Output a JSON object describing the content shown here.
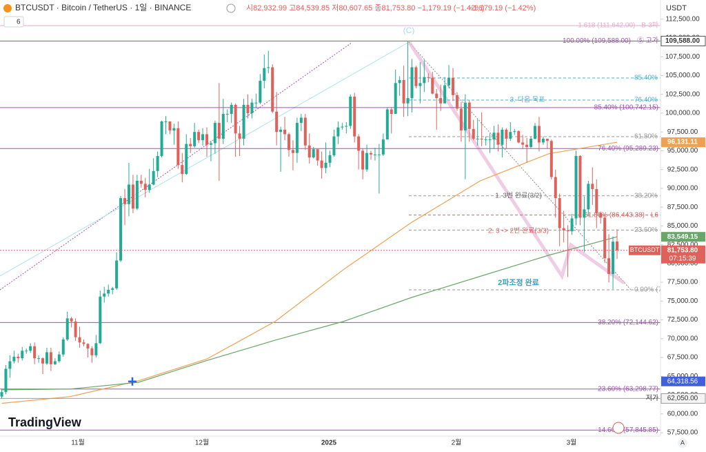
{
  "header": {
    "symbol": "BTCUSDT · Bitcoin / TetherUS · 1일 · BINANCE",
    "ohlc_text": "시82,932.99 고84,539.85 저80,607.65 종81,753.80 −1,179.19 (−1.42%)",
    "change_text": "−1,179.19 (−1.42%)",
    "indicator_count": "6",
    "currency": "USDT",
    "logo": "TradingView",
    "axis_mode": "A"
  },
  "chart_data": {
    "type": "candlestick",
    "up_color": "#22ab94",
    "down_color": "#e0605a",
    "ylim": [
      57040,
      115048
    ],
    "yticks": [
      {
        "value": 57500,
        "label": "57,500.00"
      },
      {
        "value": 60000,
        "label": "60,000.00"
      },
      {
        "value": 62500,
        "label": "62,500.00"
      },
      {
        "value": 65000,
        "label": "65,000.00"
      },
      {
        "value": 67500,
        "label": "67,500.00"
      },
      {
        "value": 70000,
        "label": "70,000.00"
      },
      {
        "value": 72500,
        "label": "72,500.00"
      },
      {
        "value": 75000,
        "label": "75,000.00"
      },
      {
        "value": 77500,
        "label": "77,500.00"
      },
      {
        "value": 80000,
        "label": "80,000.00"
      },
      {
        "value": 82500,
        "label": "82,500.00"
      },
      {
        "value": 85000,
        "label": "85,000.00"
      },
      {
        "value": 87500,
        "label": "87,500.00"
      },
      {
        "value": 90000,
        "label": "90,000.00"
      },
      {
        "value": 92500,
        "label": "92,500.00"
      },
      {
        "value": 95000,
        "label": "95,000.00"
      },
      {
        "value": 97500,
        "label": "97,500.00"
      },
      {
        "value": 100000,
        "label": "100,000.00"
      },
      {
        "value": 102500,
        "label": "102,500.00"
      },
      {
        "value": 105000,
        "label": "105,000.00"
      },
      {
        "value": 107500,
        "label": "107,500.00"
      },
      {
        "value": 110000,
        "label": "110,000.00"
      },
      {
        "value": 112500,
        "label": "112,500.00"
      }
    ],
    "time_labels": [
      "11월",
      "12월",
      "2025",
      "2월",
      "3월"
    ],
    "candles": [
      [
        62300,
        63300,
        62000,
        62900
      ],
      [
        62900,
        66500,
        62600,
        66000
      ],
      [
        66000,
        67800,
        64800,
        67000
      ],
      [
        67000,
        68400,
        66700,
        67600
      ],
      [
        67600,
        68000,
        66800,
        67400
      ],
      [
        67400,
        68900,
        67100,
        68400
      ],
      [
        68400,
        68700,
        68000,
        68400
      ],
      [
        68400,
        69400,
        68100,
        69000
      ],
      [
        69000,
        69500,
        66600,
        67400
      ],
      [
        67400,
        67800,
        66800,
        67400
      ],
      [
        67400,
        67500,
        65300,
        66700
      ],
      [
        66700,
        68800,
        66500,
        68200
      ],
      [
        68200,
        68800,
        65700,
        66600
      ],
      [
        66600,
        67400,
        66500,
        67000
      ],
      [
        67000,
        68300,
        66800,
        67900
      ],
      [
        67900,
        70200,
        67600,
        69900
      ],
      [
        69900,
        73600,
        69700,
        72700
      ],
      [
        72700,
        72900,
        71500,
        72300
      ],
      [
        72300,
        72700,
        69700,
        70200
      ],
      [
        70200,
        71600,
        68800,
        69500
      ],
      [
        69500,
        69900,
        69000,
        69300
      ],
      [
        69300,
        69400,
        67500,
        68700
      ],
      [
        68700,
        69000,
        66800,
        67800
      ],
      [
        67800,
        70500,
        67500,
        69400
      ],
      [
        69400,
        76400,
        69300,
        75600
      ],
      [
        75600,
        76900,
        74800,
        76000
      ],
      [
        76000,
        77200,
        75600,
        76500
      ],
      [
        76500,
        76900,
        75900,
        76700
      ],
      [
        76700,
        81500,
        76500,
        80400
      ],
      [
        80400,
        89000,
        80200,
        88700
      ],
      [
        88700,
        89900,
        85100,
        87900
      ],
      [
        87900,
        93400,
        86300,
        90500
      ],
      [
        90500,
        91800,
        86700,
        87300
      ],
      [
        87300,
        91800,
        87100,
        91000
      ],
      [
        91000,
        91800,
        90100,
        90600
      ],
      [
        90600,
        91400,
        88800,
        89800
      ],
      [
        89800,
        92600,
        89400,
        90500
      ],
      [
        90500,
        94000,
        90400,
        92300
      ],
      [
        92300,
        94900,
        91500,
        94300
      ],
      [
        94300,
        99000,
        94100,
        98900
      ],
      [
        98900,
        99600,
        97200,
        98900
      ],
      [
        98900,
        98900,
        97200,
        97700
      ],
      [
        97700,
        98600,
        95800,
        98000
      ],
      [
        98000,
        98900,
        92600,
        93100
      ],
      [
        93100,
        94700,
        90800,
        91900
      ],
      [
        91900,
        97200,
        91800,
        95900
      ],
      [
        95900,
        96700,
        94700,
        95600
      ],
      [
        95600,
        98700,
        95400,
        97500
      ],
      [
        97500,
        97800,
        96000,
        96400
      ],
      [
        96400,
        98000,
        95700,
        97200
      ],
      [
        97200,
        98100,
        94200,
        95800
      ],
      [
        95800,
        96300,
        93600,
        96000
      ],
      [
        96000,
        99000,
        94600,
        98700
      ],
      [
        98700,
        104000,
        91000,
        96600
      ],
      [
        96600,
        101900,
        95900,
        99900
      ],
      [
        99900,
        100500,
        98800,
        99900
      ],
      [
        99900,
        101400,
        98700,
        101100
      ],
      [
        101100,
        101300,
        94200,
        97300
      ],
      [
        97300,
        98300,
        94300,
        96600
      ],
      [
        96600,
        101900,
        95700,
        101100
      ],
      [
        101100,
        102500,
        99300,
        100000
      ],
      [
        100000,
        101900,
        99300,
        101400
      ],
      [
        101400,
        102600,
        100600,
        101400
      ],
      [
        101400,
        105200,
        101200,
        104300
      ],
      [
        104300,
        107800,
        103300,
        106000
      ],
      [
        106000,
        108300,
        105300,
        106100
      ],
      [
        106100,
        106500,
        100000,
        100200
      ],
      [
        100200,
        102800,
        95700,
        97500
      ],
      [
        97500,
        98200,
        92200,
        97800
      ],
      [
        97800,
        99500,
        96400,
        97200
      ],
      [
        97200,
        97400,
        94200,
        95100
      ],
      [
        95100,
        96400,
        92400,
        94700
      ],
      [
        94700,
        99400,
        93400,
        98700
      ],
      [
        98700,
        99900,
        97600,
        99400
      ],
      [
        99400,
        99900,
        95100,
        95700
      ],
      [
        95700,
        97300,
        93300,
        94100
      ],
      [
        94100,
        95500,
        94000,
        95200
      ],
      [
        95200,
        95200,
        93000,
        93700
      ],
      [
        93700,
        94900,
        91300,
        92700
      ],
      [
        92700,
        96100,
        92000,
        93400
      ],
      [
        93400,
        95000,
        92800,
        94400
      ],
      [
        94400,
        97800,
        94200,
        96900
      ],
      [
        96900,
        98900,
        95900,
        98100
      ],
      [
        98100,
        98700,
        97800,
        98200
      ],
      [
        98200,
        98800,
        97300,
        98300
      ],
      [
        98300,
        102500,
        97900,
        102200
      ],
      [
        102200,
        102700,
        96100,
        96900
      ],
      [
        96900,
        97200,
        92500,
        95000
      ],
      [
        95000,
        95300,
        91200,
        92500
      ],
      [
        92500,
        95800,
        92200,
        94700
      ],
      [
        94700,
        95000,
        93800,
        94500
      ],
      [
        94500,
        95400,
        93700,
        94500
      ],
      [
        94500,
        95900,
        89300,
        94500
      ],
      [
        94500,
        97300,
        94300,
        96500
      ],
      [
        96500,
        100700,
        96500,
        100500
      ],
      [
        100500,
        100800,
        97300,
        99900
      ],
      [
        99900,
        105800,
        99900,
        104000
      ],
      [
        104000,
        104900,
        102300,
        104400
      ],
      [
        104400,
        106300,
        99500,
        101300
      ],
      [
        101300,
        109600,
        99600,
        102000
      ],
      [
        102000,
        107200,
        100100,
        106100
      ],
      [
        106100,
        106300,
        103300,
        103600
      ],
      [
        103600,
        106800,
        101300,
        104000
      ],
      [
        104000,
        107100,
        102800,
        104800
      ],
      [
        104800,
        105300,
        104100,
        104700
      ],
      [
        104700,
        105500,
        102500,
        102600
      ],
      [
        102600,
        103200,
        97800,
        102000
      ],
      [
        102000,
        103800,
        100300,
        101300
      ],
      [
        101300,
        104800,
        101300,
        103700
      ],
      [
        103700,
        106400,
        103300,
        104700
      ],
      [
        104700,
        106000,
        101600,
        102400
      ],
      [
        102400,
        102800,
        100300,
        100600
      ],
      [
        100600,
        101500,
        96200,
        97700
      ],
      [
        97700,
        102500,
        91200,
        101400
      ],
      [
        101400,
        101700,
        96200,
        97900
      ],
      [
        97900,
        99100,
        96400,
        96600
      ],
      [
        96600,
        99200,
        95700,
        96600
      ],
      [
        96600,
        100100,
        95600,
        96500
      ],
      [
        96500,
        96900,
        95700,
        96500
      ],
      [
        96500,
        97300,
        94700,
        96500
      ],
      [
        96500,
        98300,
        95300,
        97400
      ],
      [
        97400,
        98500,
        94900,
        95800
      ],
      [
        95800,
        98100,
        94100,
        97800
      ],
      [
        97800,
        98000,
        95300,
        96600
      ],
      [
        96600,
        98800,
        96300,
        97500
      ],
      [
        97500,
        97900,
        97100,
        97600
      ],
      [
        97600,
        97700,
        96000,
        96100
      ],
      [
        96100,
        97100,
        95200,
        95800
      ],
      [
        95800,
        96700,
        93400,
        95500
      ],
      [
        95500,
        96900,
        95300,
        96600
      ],
      [
        96600,
        98700,
        96500,
        98300
      ],
      [
        98300,
        99500,
        94900,
        96100
      ],
      [
        96100,
        96900,
        95800,
        96600
      ],
      [
        96600,
        96600,
        95300,
        96300
      ],
      [
        96300,
        96500,
        91200,
        91500
      ],
      [
        91500,
        92500,
        86100,
        88700
      ],
      [
        88700,
        89300,
        82300,
        84700
      ],
      [
        84700,
        87000,
        82800,
        84400
      ],
      [
        84400,
        85100,
        78200,
        84300
      ],
      [
        84300,
        86600,
        83800,
        86000
      ],
      [
        86000,
        95000,
        85100,
        94300
      ],
      [
        94300,
        94400,
        85100,
        86100
      ],
      [
        86100,
        88900,
        81500,
        87200
      ],
      [
        87200,
        91000,
        86300,
        90600
      ],
      [
        90600,
        92800,
        87800,
        89900
      ],
      [
        89900,
        91200,
        84700,
        86700
      ],
      [
        86700,
        86900,
        85300,
        86100
      ],
      [
        86100,
        86500,
        80100,
        80700
      ],
      [
        80700,
        83900,
        77500,
        78600
      ],
      [
        78600,
        83600,
        76600,
        82900
      ],
      [
        82932.99,
        84539.85,
        80607.65,
        81753.8
      ]
    ],
    "overlays": [
      {
        "color": "#f0a050",
        "values": [
          61400,
          62300,
          64400,
          67300,
          72300,
          79200,
          85500,
          91000,
          94600,
          96131.11
        ],
        "price_label": {
          "value": 96131.11,
          "label": "96,131.11"
        }
      },
      {
        "color": "#6aa56a",
        "values": [
          63200,
          63300,
          64200,
          67100,
          69800,
          72300,
          75500,
          78300,
          81100,
          83549.15
        ],
        "price_label": {
          "value": 83549.15,
          "label": "83,549.15"
        }
      }
    ],
    "levels": [
      {
        "value": 111642,
        "label": "1.618 (111,642.00) · B-3파",
        "color": "#e8a8cc",
        "style": "solid"
      },
      {
        "value": 109588,
        "label": "100.00% (109,588.00) · ⑤ 고가",
        "color": "#a050b8",
        "style": "solid"
      },
      {
        "value": 104676,
        "label": "85.40% (",
        "color": "#4bb4c8",
        "style": "dashed"
      },
      {
        "value": 101740,
        "label": "76.40% (",
        "color": "#4bb4c8",
        "style": "dashed"
      },
      {
        "value": 100742.15,
        "label": "85.40% (100,742.15)",
        "color": "#a050b8",
        "style": "solid"
      },
      {
        "value": 96870,
        "label": "61.80% (",
        "color": "#999999",
        "style": "dashed"
      },
      {
        "value": 95289.23,
        "label": "76.40% (95,289.23)",
        "color": "#a050b8",
        "style": "solid"
      },
      {
        "value": 89000,
        "label": "38.20% (",
        "color": "#999999",
        "style": "dashed"
      },
      {
        "value": 86443.38,
        "label": "61.80% (86,443.38) · L6",
        "color": "#e06060",
        "style": "dashed"
      },
      {
        "value": 84450,
        "label": "23.60% (",
        "color": "#999999",
        "style": "dashed"
      },
      {
        "value": 76500,
        "label": "0.00% (7",
        "color": "#999999",
        "style": "dashed"
      },
      {
        "value": 72144.62,
        "label": "38.20% (72,144.62)",
        "color": "#a050b8",
        "style": "solid"
      },
      {
        "value": 63298.77,
        "label": "23.60% (63,298.77)",
        "color": "#a050b8",
        "style": "solid"
      },
      {
        "value": 57845.85,
        "label": "14.60% (57,845.85)",
        "color": "#a050b8",
        "style": "solid"
      }
    ],
    "annotations": [
      "(C)",
      "3. 다음 목표",
      "1. 3번 완료(3/2)",
      "2. 3 -> 2번 완료(3/3)",
      "2파조정 완료"
    ],
    "current_price": {
      "value": 81753.8,
      "label": "81,753.80"
    },
    "countdown": "07:15:39",
    "symbol_tag": "BTCUSDT",
    "high_label": {
      "value": 109588,
      "label": "109,588.00"
    },
    "low_label": {
      "value": 62050,
      "label": "62,050.00",
      "tag": "저가"
    },
    "marker_label": {
      "value": 64318.56,
      "label": "64,318.56"
    }
  }
}
